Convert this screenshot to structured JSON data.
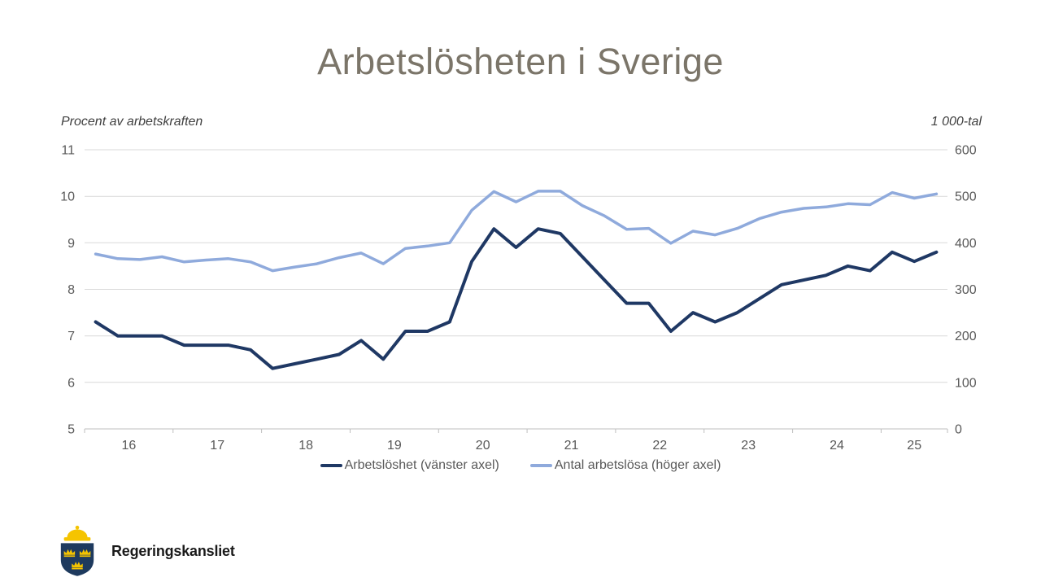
{
  "page": {
    "title": "Arbetslösheten i Sverige"
  },
  "chart_data": {
    "type": "line",
    "title": "Arbetslösheten i Sverige",
    "grid": true,
    "legend_position": "bottom-center",
    "left_axis": {
      "label": "Procent av arbetskraften",
      "min": 5,
      "max": 11,
      "ticks": [
        11,
        10,
        9,
        8,
        7,
        6,
        5
      ]
    },
    "right_axis": {
      "label": "1 000-tal",
      "min": 0,
      "max": 600,
      "ticks": [
        600,
        500,
        400,
        300,
        200,
        100,
        0
      ]
    },
    "x_axis": {
      "years": [
        "16",
        "17",
        "18",
        "19",
        "20",
        "21",
        "22",
        "23",
        "24",
        "25"
      ],
      "frequency": "quarterly",
      "start": "2016-Q1",
      "end": "2025-Q3"
    },
    "series": [
      {
        "name": "Arbetslöshet (vänster axel)",
        "axis": "left",
        "color": "#1f3864",
        "values": [
          7.3,
          7.0,
          7.0,
          7.0,
          6.8,
          6.8,
          6.8,
          6.7,
          6.3,
          6.4,
          6.5,
          6.6,
          6.9,
          6.5,
          7.1,
          7.1,
          7.3,
          8.6,
          9.3,
          8.9,
          9.3,
          9.2,
          8.7,
          8.2,
          7.7,
          7.7,
          7.1,
          7.5,
          7.3,
          7.5,
          7.8,
          8.1,
          8.2,
          8.3,
          8.5,
          8.4,
          8.8,
          8.6,
          8.8
        ]
      },
      {
        "name": "Antal arbetslösa (höger axel)",
        "axis": "right",
        "color": "#8faadc",
        "values": [
          376,
          366,
          364,
          370,
          359,
          363,
          366,
          359,
          340,
          348,
          355,
          368,
          378,
          355,
          388,
          393,
          400,
          470,
          510,
          488,
          511,
          511,
          480,
          458,
          429,
          431,
          399,
          425,
          417,
          431,
          452,
          466,
          474,
          477,
          484,
          482,
          508,
          496,
          505
        ]
      }
    ]
  },
  "colors": {
    "title": "#7b7569",
    "tick_labels": "#595959",
    "gridline": "#d9d9d9",
    "axis_line": "#bfbfbf",
    "legend_text": "#595959",
    "logo_shield": "#1e3a5e",
    "logo_gold": "#f5c400"
  },
  "footer": {
    "logo_text": "Regeringskansliet"
  }
}
